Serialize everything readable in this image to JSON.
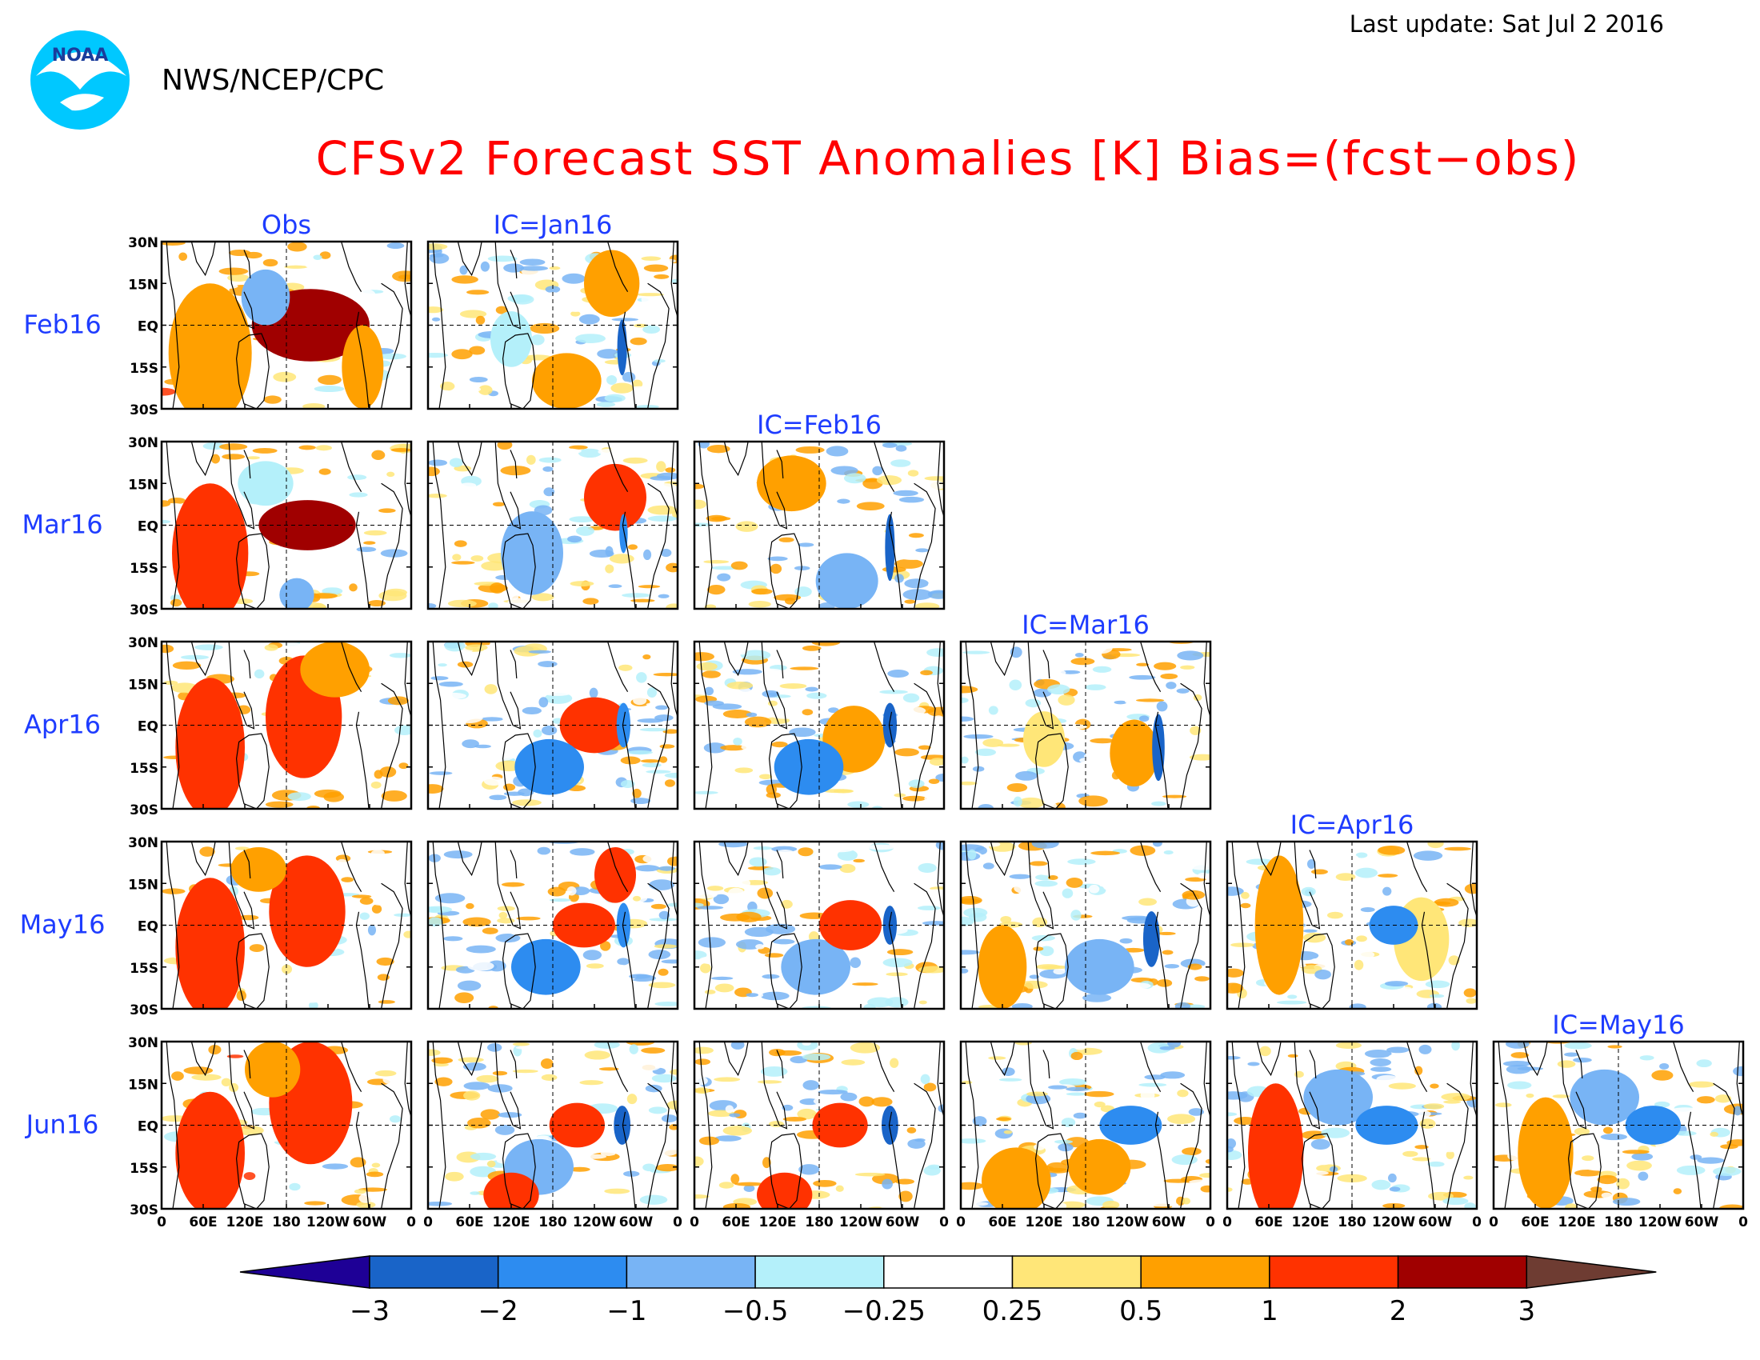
{
  "header": {
    "last_update": "Last update: Sat Jul 2 2016",
    "agency": "NWS/NCEP/CPC",
    "logo_text": "NOAA"
  },
  "colors": {
    "title": "#ff0000",
    "panel_label": "#1e3cff",
    "frame": "#000000"
  },
  "chart_data": {
    "type": "heatmap",
    "title": "CFSv2 Forecast SST Anomalies [K] Bias=(fcst−obs)",
    "rows": [
      "Feb16",
      "Mar16",
      "Apr16",
      "May16",
      "Jun16"
    ],
    "columns": [
      "Obs",
      "IC=Jan16",
      "IC=Feb16",
      "IC=Mar16",
      "IC=Apr16",
      "IC=May16"
    ],
    "panels_present": [
      [
        true,
        true,
        false,
        false,
        false,
        false
      ],
      [
        true,
        true,
        true,
        false,
        false,
        false
      ],
      [
        true,
        true,
        true,
        true,
        false,
        false
      ],
      [
        true,
        true,
        true,
        true,
        true,
        false
      ],
      [
        true,
        true,
        true,
        true,
        true,
        true
      ]
    ],
    "lat_ticks": [
      "30N",
      "15N",
      "EQ",
      "15S",
      "30S"
    ],
    "lon_ticks": [
      "0",
      "60E",
      "120E",
      "180",
      "120W",
      "60W",
      "0"
    ],
    "lat_range": [
      -30,
      30
    ],
    "lon_range": [
      0,
      360
    ],
    "colorbar": {
      "levels": [
        "−3",
        "−2",
        "−1",
        "−0.5",
        "−0.25",
        "0.25",
        "0.5",
        "1",
        "2",
        "3"
      ],
      "colors": [
        "#1e0096",
        "#1964c8",
        "#2d8cf0",
        "#78b4f5",
        "#b4f0fa",
        "#ffffff",
        "#ffe678",
        "#ffa000",
        "#ff3200",
        "#a00000",
        "#6e3c32"
      ]
    },
    "grid": "dashed EQ and 180",
    "anomaly_features": [
      {
        "row": 0,
        "col": 0,
        "lon": 200,
        "lat": 0,
        "value": 3.0,
        "w": 55,
        "h": 7
      },
      {
        "row": 0,
        "col": 0,
        "lon": 215,
        "lat": 0,
        "value": 2.2,
        "w": 85,
        "h": 13
      },
      {
        "row": 0,
        "col": 0,
        "lon": 70,
        "lat": -10,
        "value": 1.0,
        "w": 60,
        "h": 25
      },
      {
        "row": 0,
        "col": 0,
        "lon": 150,
        "lat": 10,
        "value": -0.5,
        "w": 35,
        "h": 10
      },
      {
        "row": 0,
        "col": 0,
        "lon": 290,
        "lat": -15,
        "value": 1.0,
        "w": 30,
        "h": 15
      },
      {
        "row": 0,
        "col": 1,
        "lon": 280,
        "lat": -8,
        "value": -2.5,
        "w": 7,
        "h": 10
      },
      {
        "row": 0,
        "col": 1,
        "lon": 265,
        "lat": 15,
        "value": 1.0,
        "w": 40,
        "h": 12
      },
      {
        "row": 0,
        "col": 1,
        "lon": 200,
        "lat": -20,
        "value": 0.6,
        "w": 50,
        "h": 10
      },
      {
        "row": 0,
        "col": 1,
        "lon": 120,
        "lat": -5,
        "value": -0.4,
        "w": 30,
        "h": 10
      },
      {
        "row": 1,
        "col": 0,
        "lon": 210,
        "lat": 0,
        "value": 2.5,
        "w": 70,
        "h": 9
      },
      {
        "row": 1,
        "col": 0,
        "lon": 70,
        "lat": -10,
        "value": 1.3,
        "w": 55,
        "h": 25
      },
      {
        "row": 1,
        "col": 0,
        "lon": 195,
        "lat": -25,
        "value": -0.5,
        "w": 25,
        "h": 6
      },
      {
        "row": 1,
        "col": 0,
        "lon": 150,
        "lat": 15,
        "value": -0.4,
        "w": 40,
        "h": 8
      },
      {
        "row": 1,
        "col": 1,
        "lon": 270,
        "lat": 10,
        "value": 1.2,
        "w": 45,
        "h": 12
      },
      {
        "row": 1,
        "col": 1,
        "lon": 150,
        "lat": -10,
        "value": -0.8,
        "w": 45,
        "h": 15
      },
      {
        "row": 1,
        "col": 1,
        "lon": 282,
        "lat": -3,
        "value": -1.8,
        "w": 6,
        "h": 7
      },
      {
        "row": 1,
        "col": 2,
        "lon": 282,
        "lat": -8,
        "value": -2.5,
        "w": 7,
        "h": 12
      },
      {
        "row": 1,
        "col": 2,
        "lon": 220,
        "lat": -20,
        "value": -0.7,
        "w": 45,
        "h": 10
      },
      {
        "row": 1,
        "col": 2,
        "lon": 140,
        "lat": 15,
        "value": 0.6,
        "w": 50,
        "h": 10
      },
      {
        "row": 2,
        "col": 0,
        "lon": 205,
        "lat": 3,
        "value": 1.7,
        "w": 55,
        "h": 22
      },
      {
        "row": 2,
        "col": 0,
        "lon": 70,
        "lat": -8,
        "value": 1.4,
        "w": 50,
        "h": 25
      },
      {
        "row": 2,
        "col": 0,
        "lon": 250,
        "lat": 20,
        "value": 0.8,
        "w": 50,
        "h": 10
      },
      {
        "row": 2,
        "col": 1,
        "lon": 240,
        "lat": 0,
        "value": 1.1,
        "w": 50,
        "h": 10
      },
      {
        "row": 2,
        "col": 1,
        "lon": 175,
        "lat": -15,
        "value": -1.2,
        "w": 50,
        "h": 10
      },
      {
        "row": 2,
        "col": 1,
        "lon": 282,
        "lat": 0,
        "value": -1.5,
        "w": 10,
        "h": 8
      },
      {
        "row": 2,
        "col": 2,
        "lon": 230,
        "lat": -5,
        "value": 1.0,
        "w": 45,
        "h": 12
      },
      {
        "row": 2,
        "col": 2,
        "lon": 165,
        "lat": -15,
        "value": -1.0,
        "w": 50,
        "h": 10
      },
      {
        "row": 2,
        "col": 2,
        "lon": 282,
        "lat": 0,
        "value": -2.0,
        "w": 10,
        "h": 8
      },
      {
        "row": 2,
        "col": 3,
        "lon": 285,
        "lat": -8,
        "value": -2.5,
        "w": 9,
        "h": 12
      },
      {
        "row": 2,
        "col": 3,
        "lon": 250,
        "lat": -10,
        "value": 0.8,
        "w": 35,
        "h": 12
      },
      {
        "row": 2,
        "col": 3,
        "lon": 120,
        "lat": -5,
        "value": 0.5,
        "w": 30,
        "h": 10
      },
      {
        "row": 3,
        "col": 0,
        "lon": 210,
        "lat": 5,
        "value": 1.2,
        "w": 55,
        "h": 20
      },
      {
        "row": 3,
        "col": 0,
        "lon": 70,
        "lat": -8,
        "value": 1.2,
        "w": 50,
        "h": 25
      },
      {
        "row": 3,
        "col": 0,
        "lon": 140,
        "lat": 20,
        "value": 0.7,
        "w": 40,
        "h": 8
      },
      {
        "row": 3,
        "col": 1,
        "lon": 225,
        "lat": 0,
        "value": 1.6,
        "w": 45,
        "h": 8
      },
      {
        "row": 3,
        "col": 1,
        "lon": 170,
        "lat": -15,
        "value": -1.0,
        "w": 50,
        "h": 10
      },
      {
        "row": 3,
        "col": 1,
        "lon": 282,
        "lat": 0,
        "value": -1.8,
        "w": 10,
        "h": 8
      },
      {
        "row": 3,
        "col": 1,
        "lon": 270,
        "lat": 18,
        "value": 1.2,
        "w": 30,
        "h": 10
      },
      {
        "row": 3,
        "col": 2,
        "lon": 225,
        "lat": 0,
        "value": 1.2,
        "w": 45,
        "h": 9
      },
      {
        "row": 3,
        "col": 2,
        "lon": 175,
        "lat": -15,
        "value": -0.9,
        "w": 50,
        "h": 10
      },
      {
        "row": 3,
        "col": 2,
        "lon": 282,
        "lat": 0,
        "value": -2.2,
        "w": 10,
        "h": 7
      },
      {
        "row": 3,
        "col": 3,
        "lon": 275,
        "lat": -5,
        "value": -2.0,
        "w": 12,
        "h": 10
      },
      {
        "row": 3,
        "col": 3,
        "lon": 200,
        "lat": -15,
        "value": -0.7,
        "w": 50,
        "h": 10
      },
      {
        "row": 3,
        "col": 3,
        "lon": 60,
        "lat": -15,
        "value": 0.8,
        "w": 35,
        "h": 15
      },
      {
        "row": 3,
        "col": 4,
        "lon": 75,
        "lat": 0,
        "value": 0.9,
        "w": 35,
        "h": 25
      },
      {
        "row": 3,
        "col": 4,
        "lon": 240,
        "lat": 0,
        "value": -1.0,
        "w": 35,
        "h": 7
      },
      {
        "row": 3,
        "col": 4,
        "lon": 280,
        "lat": -5,
        "value": 0.5,
        "w": 40,
        "h": 15
      },
      {
        "row": 4,
        "col": 0,
        "lon": 215,
        "lat": 8,
        "value": 1.2,
        "w": 60,
        "h": 22
      },
      {
        "row": 4,
        "col": 0,
        "lon": 70,
        "lat": -10,
        "value": 1.1,
        "w": 50,
        "h": 22
      },
      {
        "row": 4,
        "col": 0,
        "lon": 160,
        "lat": 20,
        "value": 0.7,
        "w": 40,
        "h": 10
      },
      {
        "row": 4,
        "col": 1,
        "lon": 215,
        "lat": 0,
        "value": 1.2,
        "w": 40,
        "h": 8
      },
      {
        "row": 4,
        "col": 1,
        "lon": 160,
        "lat": -15,
        "value": -0.8,
        "w": 50,
        "h": 10
      },
      {
        "row": 4,
        "col": 1,
        "lon": 280,
        "lat": 0,
        "value": -2.0,
        "w": 12,
        "h": 7
      },
      {
        "row": 4,
        "col": 1,
        "lon": 120,
        "lat": -25,
        "value": 1.3,
        "w": 40,
        "h": 8
      },
      {
        "row": 4,
        "col": 2,
        "lon": 210,
        "lat": 0,
        "value": 1.3,
        "w": 40,
        "h": 8
      },
      {
        "row": 4,
        "col": 2,
        "lon": 282,
        "lat": 0,
        "value": -2.0,
        "w": 12,
        "h": 7
      },
      {
        "row": 4,
        "col": 2,
        "lon": 130,
        "lat": -25,
        "value": 1.2,
        "w": 40,
        "h": 8
      },
      {
        "row": 4,
        "col": 3,
        "lon": 245,
        "lat": 0,
        "value": -1.5,
        "w": 45,
        "h": 7
      },
      {
        "row": 4,
        "col": 3,
        "lon": 80,
        "lat": -20,
        "value": 1.0,
        "w": 50,
        "h": 12
      },
      {
        "row": 4,
        "col": 3,
        "lon": 200,
        "lat": -15,
        "value": 0.6,
        "w": 45,
        "h": 10
      },
      {
        "row": 4,
        "col": 4,
        "lon": 230,
        "lat": 0,
        "value": -1.7,
        "w": 45,
        "h": 7
      },
      {
        "row": 4,
        "col": 4,
        "lon": 70,
        "lat": -10,
        "value": 1.2,
        "w": 40,
        "h": 25
      },
      {
        "row": 4,
        "col": 4,
        "lon": 160,
        "lat": 10,
        "value": -0.6,
        "w": 50,
        "h": 10
      },
      {
        "row": 4,
        "col": 5,
        "lon": 230,
        "lat": 0,
        "value": -1.2,
        "w": 40,
        "h": 7
      },
      {
        "row": 4,
        "col": 5,
        "lon": 75,
        "lat": -10,
        "value": 0.8,
        "w": 40,
        "h": 20
      },
      {
        "row": 4,
        "col": 5,
        "lon": 160,
        "lat": 10,
        "value": -0.6,
        "w": 50,
        "h": 10
      }
    ]
  }
}
